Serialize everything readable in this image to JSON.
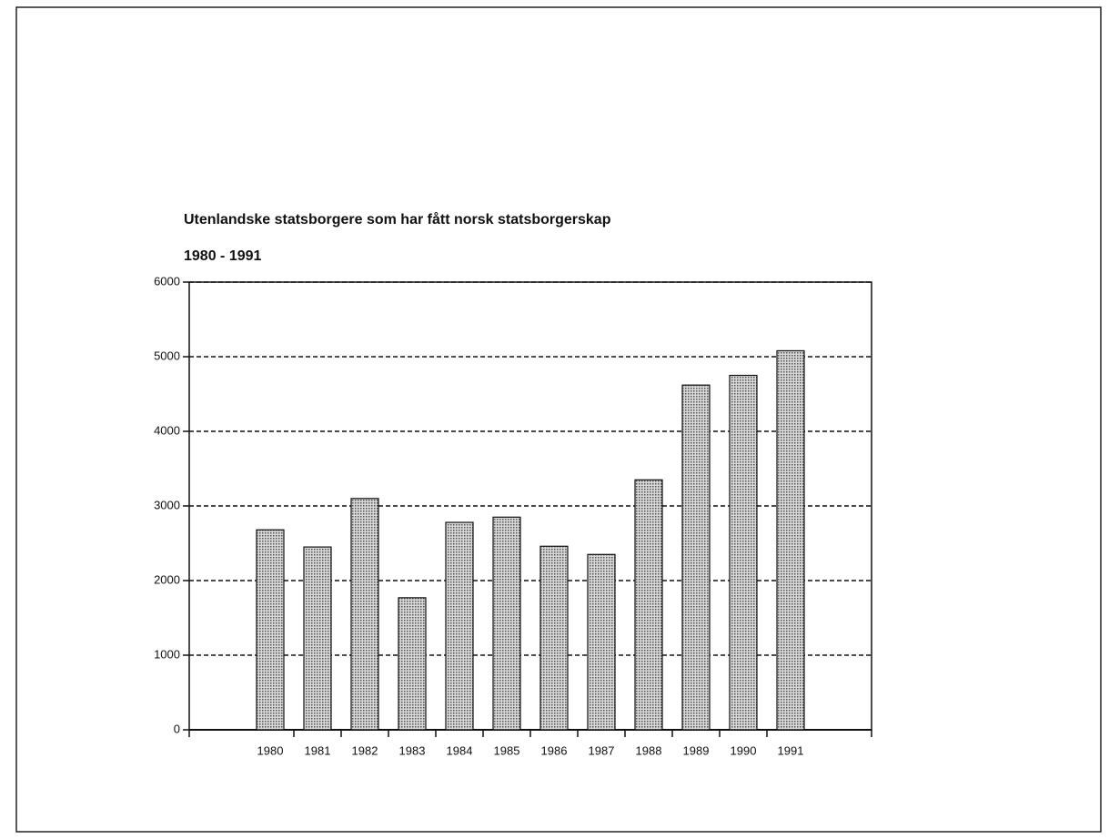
{
  "chart_data": {
    "type": "bar",
    "title": "Utenlandske statsborgere som har fått norsk statsborgerskap",
    "subtitle": "1980 - 1991",
    "categories": [
      "1980",
      "1981",
      "1982",
      "1983",
      "1984",
      "1985",
      "1986",
      "1987",
      "1988",
      "1989",
      "1990",
      "1991"
    ],
    "values": [
      2680,
      2450,
      3100,
      1770,
      2780,
      2850,
      2460,
      2350,
      3350,
      4620,
      4750,
      5080
    ],
    "color": "#a8a8a8",
    "ylim": [
      0,
      6000
    ],
    "yticks": [
      0,
      1000,
      2000,
      3000,
      4000,
      5000,
      6000
    ],
    "grid": true
  }
}
